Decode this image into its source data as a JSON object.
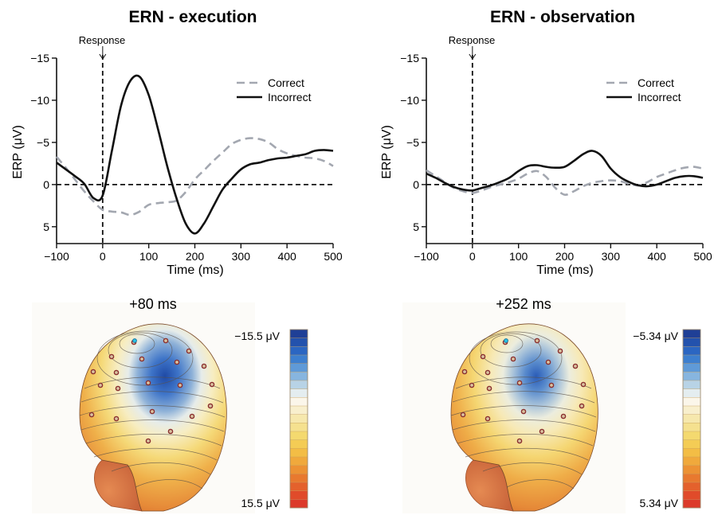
{
  "chart_data": [
    {
      "type": "line",
      "title": "ERN - execution",
      "xlabel": "Time (ms)",
      "ylabel": "ERP (μV)",
      "xlim": [
        -100,
        500
      ],
      "ylim": [
        7,
        -15
      ],
      "y_inverted": true,
      "xticks": [
        -100,
        0,
        100,
        200,
        300,
        400,
        500
      ],
      "xtick_labels": [
        "−100",
        "0",
        "100",
        "200",
        "300",
        "400",
        "500"
      ],
      "yticks": [
        -15,
        -10,
        -5,
        0,
        5
      ],
      "ytick_labels": [
        "−15",
        "−10",
        "−5",
        "0",
        "5"
      ],
      "annotation": "Response",
      "annotation_x": 0,
      "legend_position": "top-right",
      "series": [
        {
          "name": "Correct",
          "style": "dashed",
          "color": "#a3a7b0",
          "x": [
            -100,
            -80,
            -60,
            -40,
            -20,
            0,
            20,
            40,
            60,
            80,
            100,
            120,
            140,
            160,
            180,
            200,
            220,
            240,
            260,
            280,
            300,
            320,
            340,
            360,
            380,
            400,
            420,
            440,
            460,
            480,
            500
          ],
          "y": [
            -3.3,
            -2.0,
            -0.6,
            0.8,
            2.0,
            3.0,
            3.2,
            3.3,
            3.6,
            3.2,
            2.4,
            2.2,
            2.1,
            1.9,
            0.9,
            -0.6,
            -1.7,
            -2.8,
            -3.8,
            -4.8,
            -5.3,
            -5.5,
            -5.4,
            -5.0,
            -4.2,
            -3.7,
            -3.4,
            -3.2,
            -3.1,
            -2.8,
            -2.2
          ]
        },
        {
          "name": "Incorrect",
          "style": "solid",
          "color": "#111111",
          "x": [
            -100,
            -80,
            -60,
            -40,
            -20,
            0,
            20,
            40,
            60,
            80,
            100,
            120,
            140,
            160,
            180,
            200,
            220,
            240,
            260,
            280,
            300,
            320,
            340,
            360,
            380,
            400,
            420,
            440,
            460,
            480,
            500
          ],
          "y": [
            -2.6,
            -1.8,
            -1.0,
            -0.1,
            1.6,
            1.3,
            -4.0,
            -9.4,
            -12.3,
            -12.8,
            -10.6,
            -6.6,
            -2.2,
            1.6,
            4.6,
            5.8,
            4.6,
            2.6,
            0.6,
            -0.7,
            -1.8,
            -2.4,
            -2.6,
            -2.9,
            -3.1,
            -3.2,
            -3.4,
            -3.6,
            -4.0,
            -4.1,
            -4.0
          ]
        }
      ]
    },
    {
      "type": "line",
      "title": "ERN - observation",
      "xlabel": "Time (ms)",
      "ylabel": "ERP (μV)",
      "xlim": [
        -100,
        500
      ],
      "ylim": [
        7,
        -15
      ],
      "y_inverted": true,
      "xticks": [
        -100,
        0,
        100,
        200,
        300,
        400,
        500
      ],
      "xtick_labels": [
        "−100",
        "0",
        "100",
        "200",
        "300",
        "400",
        "500"
      ],
      "yticks": [
        -15,
        -10,
        -5,
        0,
        5
      ],
      "ytick_labels": [
        "−15",
        "−10",
        "−5",
        "0",
        "5"
      ],
      "annotation": "Response",
      "annotation_x": 0,
      "legend_position": "top-right",
      "series": [
        {
          "name": "Correct",
          "style": "dashed",
          "color": "#a3a7b0",
          "x": [
            -100,
            -80,
            -60,
            -40,
            -20,
            0,
            20,
            40,
            60,
            80,
            100,
            120,
            140,
            160,
            180,
            200,
            220,
            240,
            260,
            280,
            300,
            320,
            340,
            360,
            380,
            400,
            420,
            440,
            460,
            480,
            500
          ],
          "y": [
            -1.7,
            -1.0,
            -0.3,
            0.4,
            0.8,
            1.0,
            0.7,
            0.3,
            0.0,
            -0.3,
            -0.7,
            -1.3,
            -1.6,
            -0.9,
            0.4,
            1.2,
            0.8,
            0.2,
            -0.2,
            -0.4,
            -0.5,
            -0.4,
            -0.1,
            0.1,
            -0.3,
            -0.9,
            -1.3,
            -1.7,
            -2.0,
            -2.1,
            -1.9
          ]
        },
        {
          "name": "Incorrect",
          "style": "solid",
          "color": "#111111",
          "x": [
            -100,
            -80,
            -60,
            -40,
            -20,
            0,
            20,
            40,
            60,
            80,
            100,
            120,
            140,
            160,
            180,
            200,
            220,
            240,
            260,
            280,
            300,
            320,
            340,
            360,
            380,
            400,
            420,
            440,
            460,
            480,
            500
          ],
          "y": [
            -1.3,
            -0.8,
            -0.2,
            0.3,
            0.6,
            0.7,
            0.4,
            0.1,
            -0.3,
            -0.8,
            -1.6,
            -2.2,
            -2.3,
            -2.1,
            -2.0,
            -2.1,
            -2.8,
            -3.6,
            -4.0,
            -3.4,
            -1.9,
            -0.9,
            -0.3,
            0.1,
            0.2,
            0.0,
            -0.4,
            -0.8,
            -1.0,
            -1.0,
            -0.8
          ]
        }
      ]
    }
  ],
  "topomaps": [
    {
      "time_label": "+80 ms",
      "colorbar_min_label": "−15.5 μV",
      "colorbar_max_label": "15.5 μV",
      "negative_extent": 1.0
    },
    {
      "time_label": "+252 ms",
      "colorbar_min_label": "−5.34 μV",
      "colorbar_max_label": "5.34 μV",
      "negative_extent": 0.82
    }
  ],
  "colorbar_colors": [
    "#1f3f96",
    "#2352ad",
    "#2b66c2",
    "#3d7fcf",
    "#5f9ad8",
    "#87b5df",
    "#b8d3e6",
    "#e4edf0",
    "#fbf6ea",
    "#f8efcd",
    "#f6e8ad",
    "#f5e18f",
    "#f4d96f",
    "#f4cc55",
    "#f3bd45",
    "#f0a93c",
    "#ec9234",
    "#e8792f",
    "#e4612c",
    "#e04b2a",
    "#dc3a2a"
  ]
}
